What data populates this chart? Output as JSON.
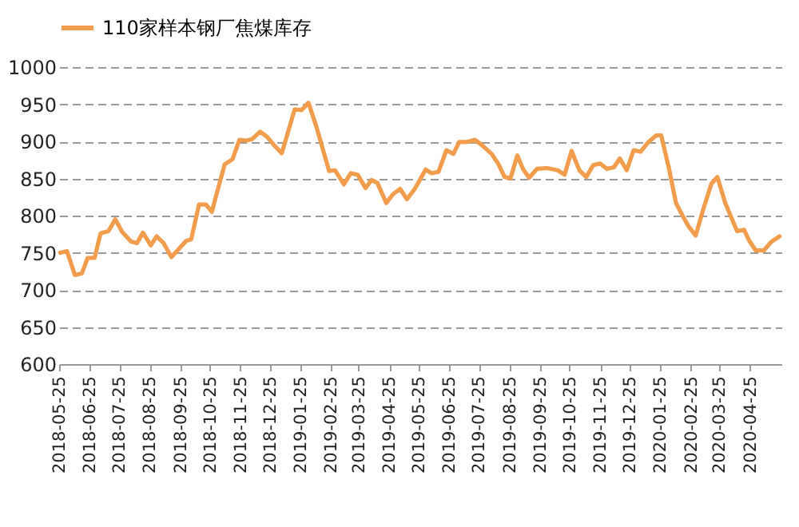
{
  "chart_data": {
    "type": "line",
    "x": [
      "2018-05-26",
      "2018-06-02",
      "2018-06-10",
      "2018-06-17",
      "2018-06-23",
      "2018-06-30",
      "2018-07-06",
      "2018-07-14",
      "2018-07-21",
      "2018-07-28",
      "2018-08-06",
      "2018-08-12",
      "2018-08-18",
      "2018-08-26",
      "2018-09-01",
      "2018-09-08",
      "2018-09-16",
      "2018-09-24",
      "2018-10-01",
      "2018-10-06",
      "2018-10-14",
      "2018-10-21",
      "2018-10-27",
      "2018-11-02",
      "2018-11-09",
      "2018-11-17",
      "2018-11-24",
      "2018-12-01",
      "2018-12-07",
      "2018-12-15",
      "2018-12-22",
      "2018-12-29",
      "2019-01-06",
      "2019-01-19",
      "2019-01-26",
      "2019-02-02",
      "2019-02-10",
      "2019-02-23",
      "2019-03-01",
      "2019-03-10",
      "2019-03-17",
      "2019-03-24",
      "2019-04-01",
      "2019-04-07",
      "2019-04-13",
      "2019-04-22",
      "2019-04-29",
      "2019-05-06",
      "2019-05-13",
      "2019-05-21",
      "2019-06-01",
      "2019-06-07",
      "2019-06-14",
      "2019-06-22",
      "2019-06-29",
      "2019-07-05",
      "2019-07-12",
      "2019-07-21",
      "2019-07-28",
      "2019-08-07",
      "2019-08-14",
      "2019-08-20",
      "2019-08-26",
      "2019-09-02",
      "2019-09-08",
      "2019-09-14",
      "2019-09-22",
      "2019-10-02",
      "2019-10-13",
      "2019-10-20",
      "2019-10-27",
      "2019-11-04",
      "2019-11-11",
      "2019-11-18",
      "2019-11-25",
      "2019-12-02",
      "2019-12-09",
      "2019-12-15",
      "2019-12-22",
      "2019-12-29",
      "2020-01-05",
      "2020-01-13",
      "2020-01-21",
      "2020-01-26",
      "2020-02-03",
      "2020-02-10",
      "2020-02-17",
      "2020-02-23",
      "2020-03-01",
      "2020-03-09",
      "2020-03-17",
      "2020-03-23",
      "2020-03-31",
      "2020-04-12",
      "2020-04-19",
      "2020-04-24",
      "2020-05-01",
      "2020-05-09",
      "2020-05-17",
      "2020-05-25"
    ],
    "series": [
      {
        "name": "110家样本钢厂焦煤库存",
        "color": "#f39c4b",
        "values": [
          750,
          752,
          720,
          722,
          743,
          743,
          776,
          779,
          795,
          778,
          765,
          763,
          777,
          760,
          772,
          763,
          744,
          756,
          766,
          768,
          815,
          815,
          805,
          835,
          869,
          876,
          902,
          901,
          903,
          913,
          906,
          895,
          884,
          943,
          942,
          952,
          920,
          860,
          861,
          842,
          857,
          855,
          837,
          848,
          844,
          817,
          829,
          836,
          822,
          836,
          862,
          857,
          859,
          888,
          883,
          899,
          899,
          902,
          895,
          883,
          869,
          852,
          850,
          881,
          862,
          851,
          863,
          864,
          861,
          855,
          887,
          861,
          852,
          868,
          870,
          863,
          865,
          877,
          861,
          888,
          886,
          899,
          908,
          908,
          863,
          817,
          799,
          785,
          773,
          810,
          843,
          852,
          817,
          779,
          781,
          767,
          753,
          753,
          765,
          772
        ]
      }
    ],
    "xlim": [
      "2018-05-25",
      "2020-05-27"
    ],
    "xticks": [
      "2018-05-25",
      "2018-06-25",
      "2018-07-25",
      "2018-08-25",
      "2018-09-25",
      "2018-10-25",
      "2018-11-25",
      "2018-12-25",
      "2019-01-25",
      "2019-02-25",
      "2019-03-25",
      "2019-04-25",
      "2019-05-25",
      "2019-06-25",
      "2019-07-25",
      "2019-08-25",
      "2019-09-25",
      "2019-10-25",
      "2019-11-25",
      "2019-12-25",
      "2020-01-25",
      "2020-02-25",
      "2020-03-25",
      "2020-04-25"
    ],
    "ylim": [
      600,
      1000
    ],
    "yticks": [
      600,
      650,
      700,
      750,
      800,
      850,
      900,
      950,
      1000
    ],
    "grid": "y",
    "legend": "top",
    "line_style": "solid",
    "marker": "none"
  }
}
